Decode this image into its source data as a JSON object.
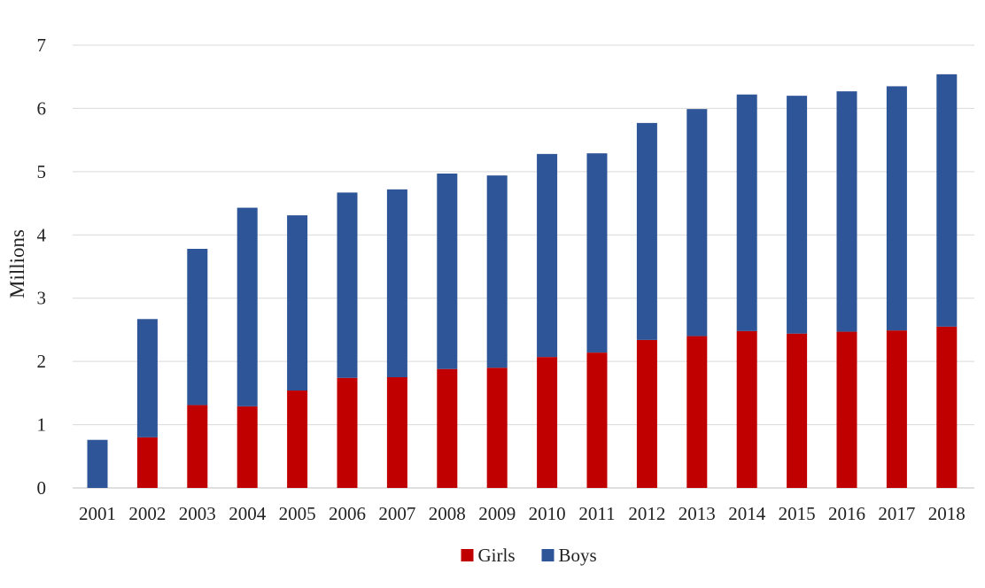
{
  "chart_data": {
    "type": "bar",
    "stacked": true,
    "title": "",
    "xlabel": "",
    "ylabel": "Millions",
    "ylim": [
      0,
      7
    ],
    "yticks": [
      0,
      1,
      2,
      3,
      4,
      5,
      6,
      7
    ],
    "grid": true,
    "legend_position": "bottom",
    "categories": [
      "2001",
      "2002",
      "2003",
      "2004",
      "2005",
      "2006",
      "2007",
      "2008",
      "2009",
      "2010",
      "2011",
      "2012",
      "2013",
      "2014",
      "2015",
      "2016",
      "2017",
      "2018"
    ],
    "series": [
      {
        "name": "Girls",
        "color": "#c00000",
        "values": [
          0.0,
          0.8,
          1.31,
          1.29,
          1.54,
          1.74,
          1.75,
          1.88,
          1.9,
          2.07,
          2.14,
          2.34,
          2.4,
          2.48,
          2.44,
          2.47,
          2.49,
          2.55
        ]
      },
      {
        "name": "Boys",
        "color": "#2e5597",
        "values": [
          0.76,
          1.87,
          2.47,
          3.14,
          2.77,
          2.93,
          2.97,
          3.09,
          3.04,
          3.21,
          3.15,
          3.43,
          3.59,
          3.74,
          3.76,
          3.8,
          3.86,
          3.99
        ]
      }
    ]
  }
}
